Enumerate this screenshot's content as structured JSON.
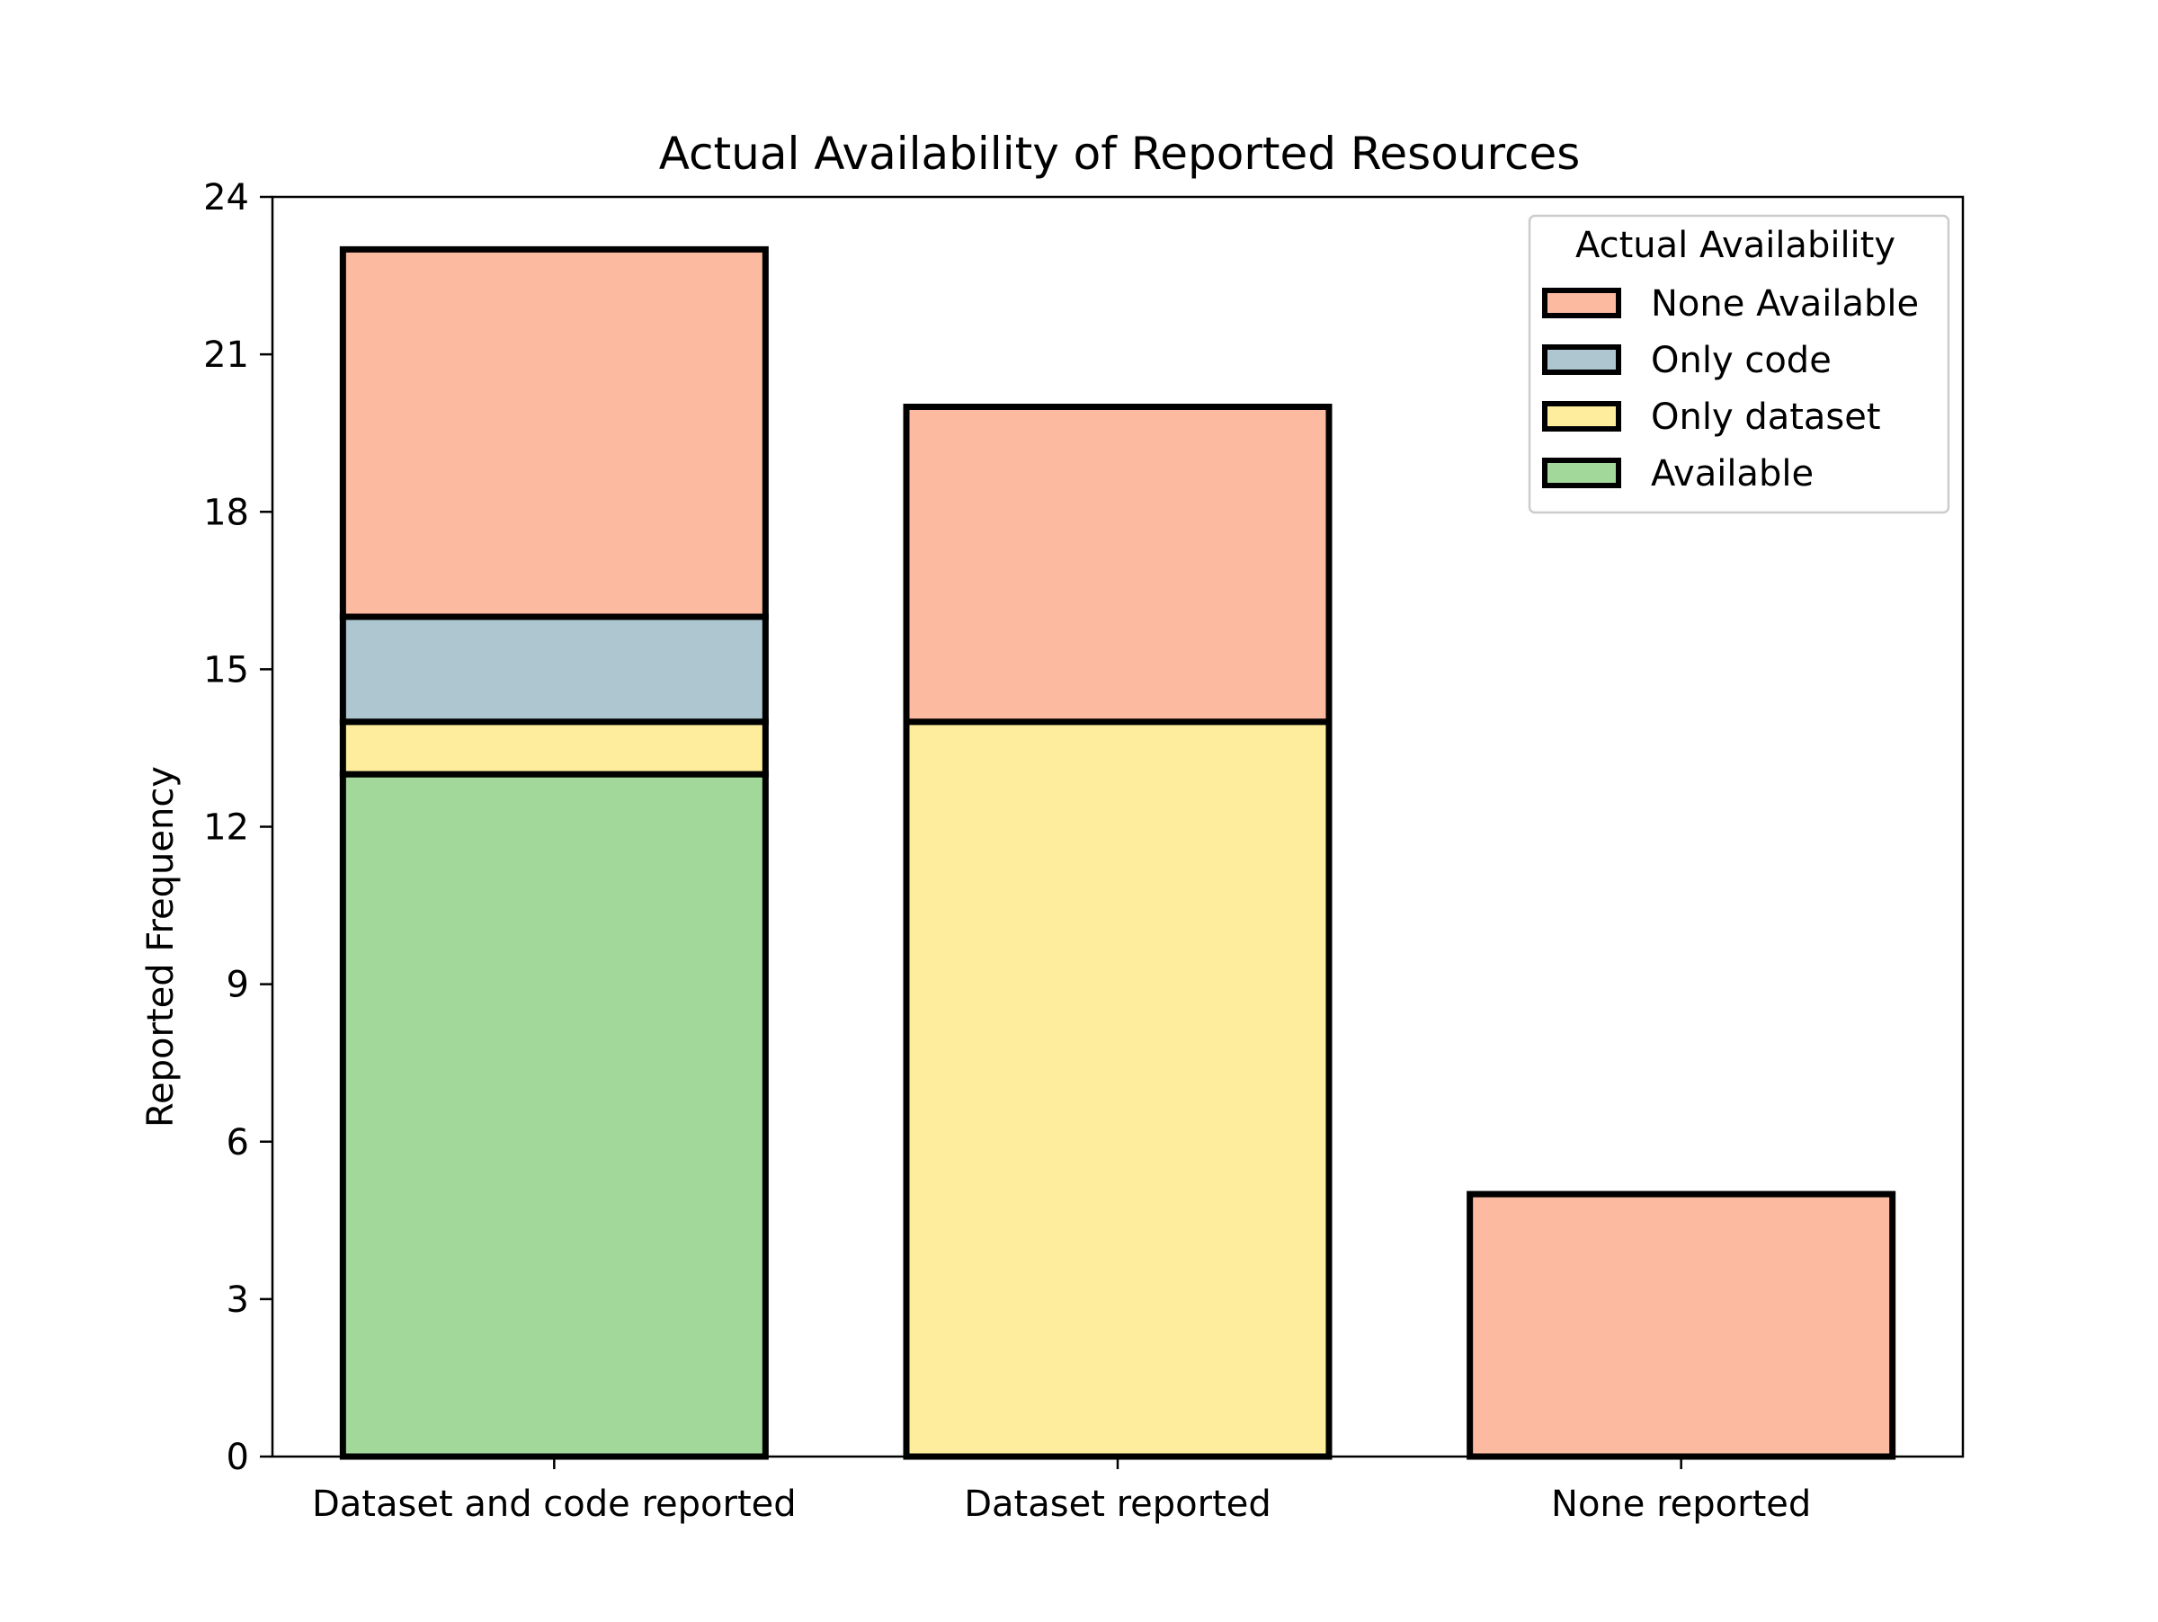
{
  "chart_data": {
    "type": "bar",
    "stacked": true,
    "title": "Actual Availability of Reported Resources",
    "xlabel": "",
    "ylabel": "Reported Frequency",
    "categories": [
      "Dataset and code reported",
      "Dataset reported",
      "None reported"
    ],
    "ylim": [
      0,
      24
    ],
    "yticks": [
      0,
      3,
      6,
      9,
      12,
      15,
      18,
      21,
      24
    ],
    "grid": false,
    "legend": {
      "title": "Actual Availability",
      "placement": "top-right",
      "entries": [
        "None Available",
        "Only code",
        "Only dataset",
        "Available"
      ]
    },
    "series": [
      {
        "name": "Available",
        "color": "#a3d89b",
        "values": [
          13,
          0,
          0
        ]
      },
      {
        "name": "Only dataset",
        "color": "#ffed9e",
        "values": [
          1,
          14,
          0
        ]
      },
      {
        "name": "Only code",
        "color": "#adc6cf",
        "values": [
          2,
          0,
          0
        ]
      },
      {
        "name": "None Available",
        "color": "#fcbba1",
        "values": [
          7,
          6,
          5
        ]
      }
    ]
  }
}
